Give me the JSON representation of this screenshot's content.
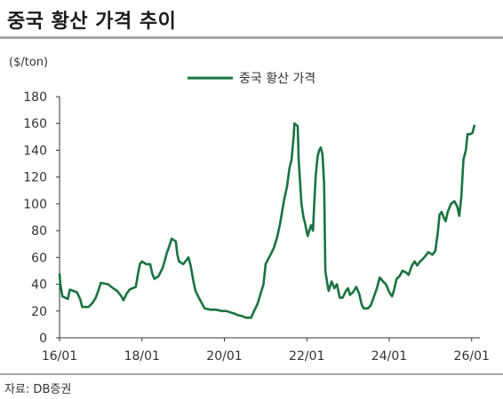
{
  "header": {
    "title": "중국 황산 가격 추이"
  },
  "footer": {
    "source": "자료: DB증권"
  },
  "chart_data": {
    "type": "line",
    "title": "",
    "unit_label": "($/ton)",
    "xlabel": "",
    "ylabel": "",
    "ylim": [
      0,
      180
    ],
    "yticks": [
      0,
      20,
      40,
      60,
      80,
      100,
      120,
      140,
      160,
      180
    ],
    "xlim": [
      2016.0,
      2026.2
    ],
    "xtick_labels": [
      {
        "x": 2016,
        "label": "16/01"
      },
      {
        "x": 2018,
        "label": "18/01"
      },
      {
        "x": 2020,
        "label": "20/01"
      },
      {
        "x": 2022,
        "label": "22/01"
      },
      {
        "x": 2024,
        "label": "24/01"
      },
      {
        "x": 2026,
        "label": "26/01"
      }
    ],
    "grid": false,
    "legend_position": "top-center",
    "series_color": "#1a7340",
    "series": [
      {
        "name": "중국 황산 가격",
        "points": [
          [
            2016.0,
            48
          ],
          [
            2016.02,
            40
          ],
          [
            2016.07,
            31
          ],
          [
            2016.2,
            29
          ],
          [
            2016.25,
            36
          ],
          [
            2016.42,
            34
          ],
          [
            2016.5,
            29
          ],
          [
            2016.55,
            23
          ],
          [
            2016.7,
            23
          ],
          [
            2016.8,
            26
          ],
          [
            2016.88,
            30
          ],
          [
            2016.95,
            36
          ],
          [
            2017.0,
            41
          ],
          [
            2017.18,
            40
          ],
          [
            2017.3,
            37
          ],
          [
            2017.4,
            35
          ],
          [
            2017.5,
            31
          ],
          [
            2017.55,
            28
          ],
          [
            2017.63,
            33
          ],
          [
            2017.7,
            36
          ],
          [
            2017.77,
            37
          ],
          [
            2017.85,
            38
          ],
          [
            2017.9,
            47
          ],
          [
            2017.95,
            55
          ],
          [
            2018.0,
            57
          ],
          [
            2018.1,
            55
          ],
          [
            2018.2,
            55
          ],
          [
            2018.25,
            48
          ],
          [
            2018.3,
            44
          ],
          [
            2018.4,
            46
          ],
          [
            2018.45,
            49
          ],
          [
            2018.5,
            52
          ],
          [
            2018.55,
            57
          ],
          [
            2018.6,
            63
          ],
          [
            2018.68,
            70
          ],
          [
            2018.72,
            74
          ],
          [
            2018.82,
            72
          ],
          [
            2018.86,
            62
          ],
          [
            2018.9,
            57
          ],
          [
            2019.0,
            55
          ],
          [
            2019.08,
            58
          ],
          [
            2019.13,
            60
          ],
          [
            2019.18,
            54
          ],
          [
            2019.25,
            42
          ],
          [
            2019.3,
            35
          ],
          [
            2019.38,
            30
          ],
          [
            2019.45,
            26
          ],
          [
            2019.52,
            22
          ],
          [
            2019.65,
            21
          ],
          [
            2019.8,
            21
          ],
          [
            2019.95,
            20
          ],
          [
            2020.05,
            20
          ],
          [
            2020.15,
            19
          ],
          [
            2020.25,
            18
          ],
          [
            2020.32,
            17
          ],
          [
            2020.45,
            16
          ],
          [
            2020.52,
            15
          ],
          [
            2020.65,
            15
          ],
          [
            2020.72,
            20
          ],
          [
            2020.8,
            25
          ],
          [
            2020.88,
            33
          ],
          [
            2020.95,
            40
          ],
          [
            2021.0,
            55
          ],
          [
            2021.05,
            58
          ],
          [
            2021.12,
            62
          ],
          [
            2021.2,
            67
          ],
          [
            2021.28,
            75
          ],
          [
            2021.35,
            85
          ],
          [
            2021.4,
            94
          ],
          [
            2021.45,
            103
          ],
          [
            2021.52,
            113
          ],
          [
            2021.58,
            127
          ],
          [
            2021.63,
            133
          ],
          [
            2021.68,
            150
          ],
          [
            2021.7,
            160
          ],
          [
            2021.78,
            158
          ],
          [
            2021.8,
            134
          ],
          [
            2021.87,
            100
          ],
          [
            2021.92,
            90
          ],
          [
            2021.96,
            85
          ],
          [
            2022.02,
            76
          ],
          [
            2022.1,
            84
          ],
          [
            2022.15,
            80
          ],
          [
            2022.18,
            100
          ],
          [
            2022.22,
            122
          ],
          [
            2022.26,
            135
          ],
          [
            2022.3,
            140
          ],
          [
            2022.34,
            142
          ],
          [
            2022.38,
            137
          ],
          [
            2022.42,
            115
          ],
          [
            2022.45,
            50
          ],
          [
            2022.5,
            40
          ],
          [
            2022.53,
            35
          ],
          [
            2022.6,
            42
          ],
          [
            2022.67,
            37
          ],
          [
            2022.73,
            40
          ],
          [
            2022.8,
            30
          ],
          [
            2022.87,
            30
          ],
          [
            2022.95,
            35
          ],
          [
            2023.0,
            37
          ],
          [
            2023.05,
            32
          ],
          [
            2023.12,
            34
          ],
          [
            2023.2,
            38
          ],
          [
            2023.27,
            33
          ],
          [
            2023.33,
            25
          ],
          [
            2023.38,
            22
          ],
          [
            2023.48,
            22
          ],
          [
            2023.55,
            24
          ],
          [
            2023.62,
            30
          ],
          [
            2023.7,
            37
          ],
          [
            2023.77,
            45
          ],
          [
            2023.85,
            42
          ],
          [
            2023.92,
            40
          ],
          [
            2024.0,
            34
          ],
          [
            2024.07,
            31
          ],
          [
            2024.12,
            36
          ],
          [
            2024.18,
            44
          ],
          [
            2024.25,
            46
          ],
          [
            2024.32,
            50
          ],
          [
            2024.4,
            49
          ],
          [
            2024.47,
            47
          ],
          [
            2024.55,
            54
          ],
          [
            2024.62,
            57
          ],
          [
            2024.68,
            54
          ],
          [
            2024.75,
            57
          ],
          [
            2024.85,
            60
          ],
          [
            2024.95,
            64
          ],
          [
            2025.05,
            62
          ],
          [
            2025.12,
            65
          ],
          [
            2025.18,
            79
          ],
          [
            2025.22,
            92
          ],
          [
            2025.27,
            94
          ],
          [
            2025.32,
            90
          ],
          [
            2025.37,
            87
          ],
          [
            2025.42,
            94
          ],
          [
            2025.5,
            100
          ],
          [
            2025.58,
            102
          ],
          [
            2025.65,
            98
          ],
          [
            2025.7,
            91
          ],
          [
            2025.75,
            105
          ],
          [
            2025.8,
            133
          ],
          [
            2025.86,
            140
          ],
          [
            2025.9,
            152
          ],
          [
            2025.96,
            152
          ],
          [
            2026.02,
            153
          ],
          [
            2026.07,
            159
          ]
        ]
      }
    ]
  }
}
